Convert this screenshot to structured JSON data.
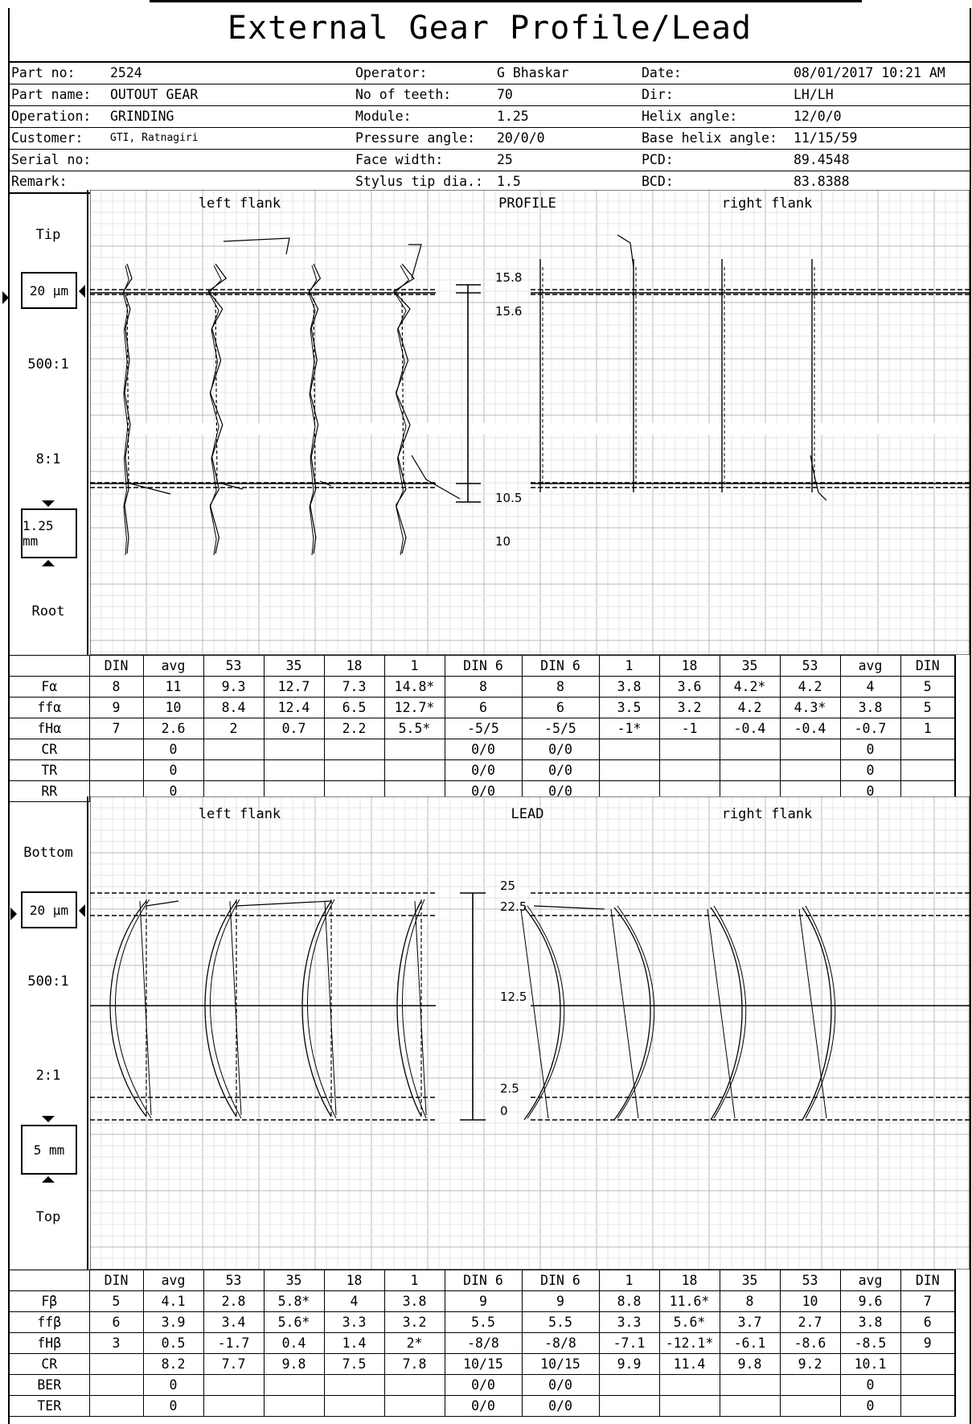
{
  "title": "External Gear Profile/Lead",
  "header": {
    "rows": [
      [
        {
          "l": "Part no:",
          "v": "2524"
        },
        {
          "l": "Operator:",
          "v": "G Bhaskar"
        },
        {
          "l": "Date:",
          "v": "08/01/2017 10:21 AM"
        }
      ],
      [
        {
          "l": "Part name:",
          "v": "OUTOUT GEAR"
        },
        {
          "l": "No of teeth:",
          "v": "70"
        },
        {
          "l": "Dir:",
          "v": "LH/LH"
        }
      ],
      [
        {
          "l": "Operation:",
          "v": "GRINDING"
        },
        {
          "l": "Module:",
          "v": "1.25"
        },
        {
          "l": "Helix angle:",
          "v": "12/0/0"
        }
      ],
      [
        {
          "l": "Customer:",
          "v": "GTI, Ratnagiri"
        },
        {
          "l": "Pressure angle:",
          "v": "20/0/0"
        },
        {
          "l": "Base helix angle:",
          "v": "11/15/59"
        }
      ],
      [
        {
          "l": "Serial no:",
          "v": ""
        },
        {
          "l": "Face width:",
          "v": "25"
        },
        {
          "l": "PCD:",
          "v": "89.4548"
        }
      ],
      [
        {
          "l": "Remark:",
          "v": ""
        },
        {
          "l": "Stylus tip dia.:",
          "v": "1.5"
        },
        {
          "l": "BCD:",
          "v": "83.8388"
        }
      ]
    ]
  },
  "profile": {
    "side": {
      "top": "Tip",
      "scale_box": "20 µm",
      "ratio1": "500:1",
      "ratio2": "8:1",
      "len_box": "1.25 mm",
      "bottom": "Root"
    },
    "left_label": "left flank",
    "center_label": "PROFILE",
    "right_label": "right flank",
    "scale_labels": [
      "15.8",
      "15.6",
      "10.5",
      "10"
    ],
    "table": {
      "header": [
        "",
        "DIN",
        "avg",
        "53",
        "35",
        "18",
        "1",
        "DIN 6",
        "DIN 6",
        "1",
        "18",
        "35",
        "53",
        "avg",
        "DIN"
      ],
      "rows": [
        [
          "Fα",
          "8",
          "11",
          "9.3",
          "12.7",
          "7.3",
          "14.8*",
          "8",
          "8",
          "3.8",
          "3.6",
          "4.2*",
          "4.2",
          "4",
          "5"
        ],
        [
          "ffα",
          "9",
          "10",
          "8.4",
          "12.4",
          "6.5",
          "12.7*",
          "6",
          "6",
          "3.5",
          "3.2",
          "4.2",
          "4.3*",
          "3.8",
          "5"
        ],
        [
          "fHα",
          "7",
          "2.6",
          "2",
          "0.7",
          "2.2",
          "5.5*",
          "-5/5",
          "-5/5",
          "-1*",
          "-1",
          "-0.4",
          "-0.4",
          "-0.7",
          "1"
        ],
        [
          "CR",
          "",
          "0",
          "",
          "",
          "",
          "",
          "0/0",
          "0/0",
          "",
          "",
          "",
          "",
          "0",
          ""
        ],
        [
          "TR",
          "",
          "0",
          "",
          "",
          "",
          "",
          "0/0",
          "0/0",
          "",
          "",
          "",
          "",
          "0",
          ""
        ],
        [
          "RR",
          "",
          "0",
          "",
          "",
          "",
          "",
          "0/0",
          "0/0",
          "",
          "",
          "",
          "",
          "0",
          ""
        ]
      ]
    }
  },
  "lead": {
    "side": {
      "top": "Bottom",
      "scale_box": "20 µm",
      "ratio1": "500:1",
      "ratio2": "2:1",
      "len_box": "5 mm",
      "bottom": "Top"
    },
    "left_label": "left flank",
    "center_label": "LEAD",
    "right_label": "right flank",
    "scale_labels": [
      "25",
      "22.5",
      "12.5",
      "2.5",
      "0"
    ],
    "table": {
      "header": [
        "",
        "DIN",
        "avg",
        "53",
        "35",
        "18",
        "1",
        "DIN 6",
        "DIN 6",
        "1",
        "18",
        "35",
        "53",
        "avg",
        "DIN"
      ],
      "rows": [
        [
          "Fβ",
          "5",
          "4.1",
          "2.8",
          "5.8*",
          "4",
          "3.8",
          "9",
          "9",
          "8.8",
          "11.6*",
          "8",
          "10",
          "9.6",
          "7"
        ],
        [
          "ffβ",
          "6",
          "3.9",
          "3.4",
          "5.6*",
          "3.3",
          "3.2",
          "5.5",
          "5.5",
          "3.3",
          "5.6*",
          "3.7",
          "2.7",
          "3.8",
          "6"
        ],
        [
          "fHβ",
          "3",
          "0.5",
          "-1.7",
          "0.4",
          "1.4",
          "2*",
          "-8/8",
          "-8/8",
          "-7.1",
          "-12.1*",
          "-6.1",
          "-8.6",
          "-8.5",
          "9"
        ],
        [
          "CR",
          "",
          "8.2",
          "7.7",
          "9.8",
          "7.5",
          "7.8",
          "10/15",
          "10/15",
          "9.9",
          "11.4",
          "9.8",
          "9.2",
          "10.1",
          ""
        ],
        [
          "BER",
          "",
          "0",
          "",
          "",
          "",
          "",
          "0/0",
          "0/0",
          "",
          "",
          "",
          "",
          "0",
          ""
        ],
        [
          "TER",
          "",
          "0",
          "",
          "",
          "",
          "",
          "0/0",
          "0/0",
          "",
          "",
          "",
          "",
          "0",
          ""
        ]
      ]
    }
  }
}
